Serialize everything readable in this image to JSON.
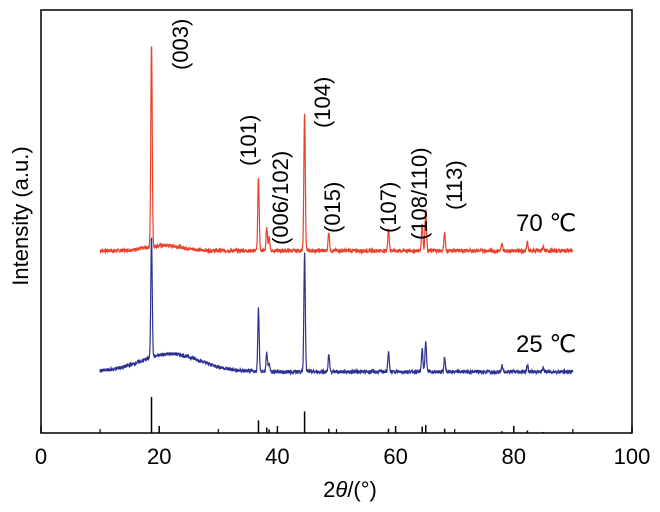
{
  "chart_data": {
    "type": "line",
    "xlabel": "2θ/(°)",
    "xlabel_parts": {
      "prefix": "2",
      "italic": "θ",
      "suffix": "/(°)"
    },
    "ylabel": "Intensity (a.u.)",
    "xlim": [
      0,
      100
    ],
    "x_ticks": [
      0,
      20,
      40,
      60,
      80,
      100
    ],
    "x_tick_labels": [
      "0",
      "20",
      "40",
      "60",
      "80",
      "100"
    ],
    "grid": false,
    "legend": "none",
    "peak_annotations": [
      {
        "label": "(003)",
        "x": 18.7
      },
      {
        "label": "(101)",
        "x": 36.8
      },
      {
        "label": "(006/102)",
        "x": 38.4
      },
      {
        "label": "(104)",
        "x": 44.6
      },
      {
        "label": "(015)",
        "x": 48.7
      },
      {
        "label": "(107)",
        "x": 58.8
      },
      {
        "label": "(108/110)",
        "x": 64.6
      },
      {
        "label": "(113)",
        "x": 68.3
      }
    ],
    "series": [
      {
        "name": "70 ℃",
        "color": "#e8412c",
        "baseline": 0.6,
        "x_range": [
          10,
          90
        ],
        "hump": {
          "center": 21,
          "width": 3,
          "height": 0.5
        },
        "peaks": [
          {
            "x": 18.7,
            "height": 19.4
          },
          {
            "x": 36.8,
            "height": 7.0
          },
          {
            "x": 38.2,
            "height": 2.1
          },
          {
            "x": 38.6,
            "height": 1.3
          },
          {
            "x": 44.6,
            "height": 13.2
          },
          {
            "x": 48.7,
            "height": 1.8
          },
          {
            "x": 58.8,
            "height": 2.1
          },
          {
            "x": 64.5,
            "height": 2.6
          },
          {
            "x": 65.1,
            "height": 4.1
          },
          {
            "x": 68.3,
            "height": 1.7
          },
          {
            "x": 78.0,
            "height": 0.6
          },
          {
            "x": 82.3,
            "height": 0.8
          },
          {
            "x": 85.0,
            "height": 0.4
          }
        ]
      },
      {
        "name": "25 ℃",
        "color": "#2e3192",
        "baseline": 0.5,
        "x_range": [
          10,
          90
        ],
        "hump": {
          "center": 22,
          "width": 5,
          "height": 1.7
        },
        "peaks": [
          {
            "x": 18.7,
            "height": 11.6
          },
          {
            "x": 36.8,
            "height": 6.0
          },
          {
            "x": 38.2,
            "height": 1.8
          },
          {
            "x": 38.6,
            "height": 0.8
          },
          {
            "x": 44.6,
            "height": 11.3
          },
          {
            "x": 48.7,
            "height": 1.6
          },
          {
            "x": 58.8,
            "height": 1.9
          },
          {
            "x": 64.5,
            "height": 2.2
          },
          {
            "x": 65.1,
            "height": 3.0
          },
          {
            "x": 68.3,
            "height": 1.3
          },
          {
            "x": 78.0,
            "height": 0.6
          },
          {
            "x": 82.3,
            "height": 0.6
          },
          {
            "x": 85.0,
            "height": 0.4
          }
        ]
      }
    ],
    "reference_pattern": {
      "color": "#000000",
      "lines": [
        {
          "x": 18.7,
          "height": 1.0
        },
        {
          "x": 36.8,
          "height": 0.35
        },
        {
          "x": 38.2,
          "height": 0.15
        },
        {
          "x": 38.6,
          "height": 0.1
        },
        {
          "x": 44.6,
          "height": 0.6
        },
        {
          "x": 48.7,
          "height": 0.12
        },
        {
          "x": 58.8,
          "height": 0.12
        },
        {
          "x": 64.5,
          "height": 0.18
        },
        {
          "x": 65.1,
          "height": 0.22
        },
        {
          "x": 68.3,
          "height": 0.12
        },
        {
          "x": 78.0,
          "height": 0.05
        },
        {
          "x": 82.3,
          "height": 0.07
        },
        {
          "x": 85.0,
          "height": 0.03
        }
      ]
    }
  }
}
